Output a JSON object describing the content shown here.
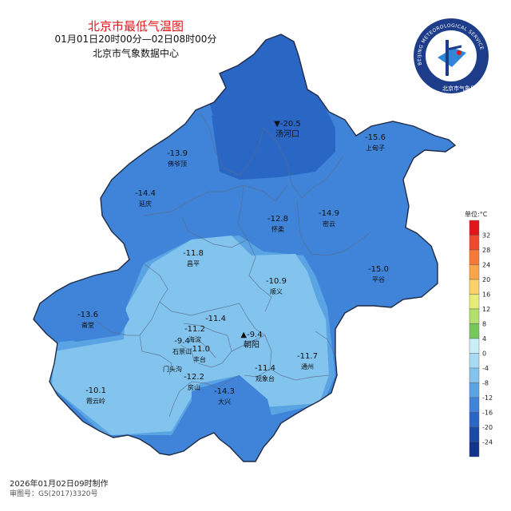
{
  "title": "北京市最低气温图",
  "period": "01月01日20时00分—02日08时00分",
  "source": "北京市气象数据中心",
  "logo": {
    "ring_text": "BEIJING METEOROLOGICAL SERVICE",
    "inner_text": "北京市气象局"
  },
  "legend": {
    "title": "单位:°C",
    "levels": [
      {
        "label": "32",
        "color": "#e3151a"
      },
      {
        "label": "28",
        "color": "#ef4a2b"
      },
      {
        "label": "24",
        "color": "#f57a3a"
      },
      {
        "label": "20",
        "color": "#f9a64a"
      },
      {
        "label": "16",
        "color": "#fbd16b"
      },
      {
        "label": "12",
        "color": "#e5ec78"
      },
      {
        "label": "8",
        "color": "#b3df6f"
      },
      {
        "label": "4",
        "color": "#75c95b"
      },
      {
        "label": "0",
        "color": "#c9eef5"
      },
      {
        "label": "-4",
        "color": "#a8dcf5"
      },
      {
        "label": "-8",
        "color": "#82c4ee"
      },
      {
        "label": "-12",
        "color": "#5aa4e4"
      },
      {
        "label": "-16",
        "color": "#3f84d8"
      },
      {
        "label": "-20",
        "color": "#2a66c4"
      },
      {
        "label": "-24",
        "color": "#1a4aa8"
      },
      {
        "label": "",
        "color": "#10358a"
      }
    ]
  },
  "stations": [
    {
      "value": "-20.5",
      "name": "汤河口",
      "marker": "▼"
    },
    {
      "value": "-15.6",
      "name": "上甸子"
    },
    {
      "value": "-13.9",
      "name": "佛爷顶"
    },
    {
      "value": "-14.4",
      "name": "延庆"
    },
    {
      "value": "-12.8",
      "name": "怀柔"
    },
    {
      "value": "-14.9",
      "name": "密云"
    },
    {
      "value": "-11.8",
      "name": "昌平"
    },
    {
      "value": "-15.0",
      "name": "平谷"
    },
    {
      "value": "-10.9",
      "name": "顺义"
    },
    {
      "value": "-13.6",
      "name": "斋堂"
    },
    {
      "value": "-11.4",
      "name": ""
    },
    {
      "value": "-11.2",
      "name": "海淀"
    },
    {
      "value": "-9.4",
      "name": "朝阳",
      "marker": "▲"
    },
    {
      "value": "-9.4",
      "name": "石景山"
    },
    {
      "value": "-11.0",
      "name": "丰台"
    },
    {
      "value": "",
      "name": "门头沟"
    },
    {
      "value": "-11.7",
      "name": "通州"
    },
    {
      "value": "-11.4",
      "name": "观象台"
    },
    {
      "value": "-12.2",
      "name": "房山"
    },
    {
      "value": "-10.1",
      "name": "霞云岭"
    },
    {
      "value": "-14.3",
      "name": "大兴"
    }
  ],
  "footer": {
    "made": "2026年01月02日09时制作",
    "approval": "审图号：GS(2017)3320号"
  }
}
